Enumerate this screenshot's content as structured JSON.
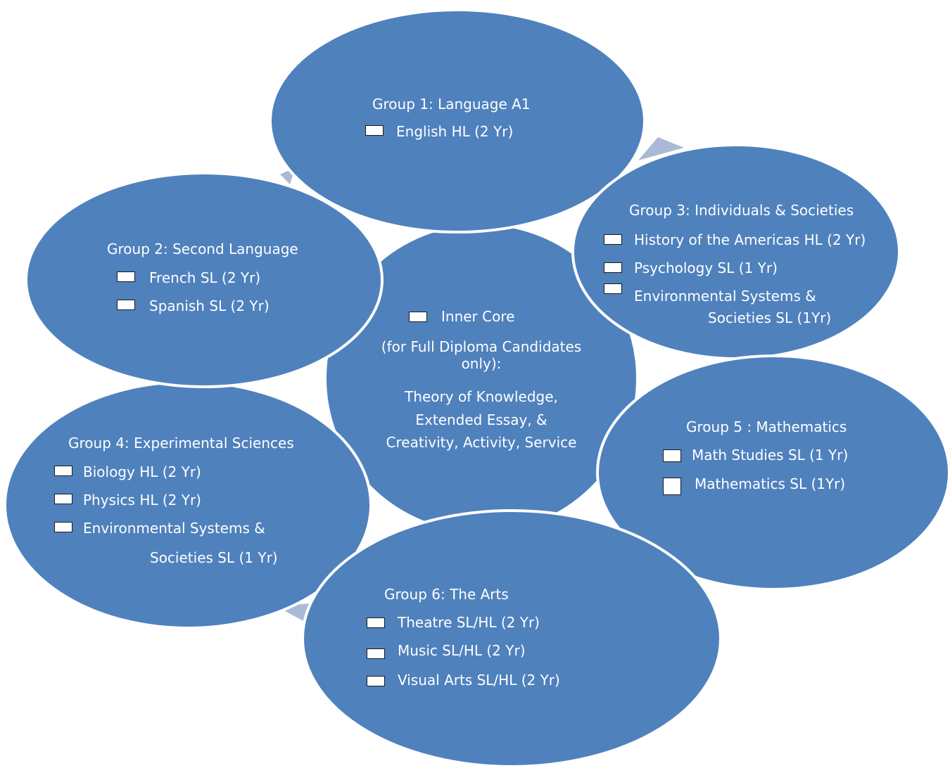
{
  "colors": {
    "circle_fill": "#4F81BD",
    "circle_stroke": "#ffffff",
    "arrow": "#AAB9D6",
    "text": "#ffffff"
  },
  "center": {
    "checkbox_label": "Inner Core",
    "line1": "(for Full Diploma Candidates",
    "line2": "only):",
    "line3": "Theory of Knowledge,",
    "line4": "Extended Essay, &",
    "line5": "Creativity, Activity, Service"
  },
  "group1": {
    "title": "Group 1: Language A1",
    "items": [
      "English HL (2 Yr)"
    ]
  },
  "group2": {
    "title": "Group 2: Second Language",
    "items": [
      "French SL (2 Yr)",
      "Spanish SL (2 Yr)"
    ]
  },
  "group3": {
    "title": "Group 3: Individuals &  Societies",
    "items": [
      "History of the Americas HL (2 Yr)",
      "Psychology SL (1 Yr)",
      "Environmental Systems &",
      "Societies SL (1Yr)"
    ]
  },
  "group4": {
    "title": "Group 4: Experimental Sciences",
    "items": [
      "Biology HL (2 Yr)",
      "Physics HL (2 Yr)",
      "Environmental Systems &",
      "Societies SL (1 Yr)"
    ]
  },
  "group5": {
    "title": "Group 5 : Mathematics",
    "items": [
      "Math Studies SL (1 Yr)",
      "Mathematics SL (1Yr)"
    ]
  },
  "group6": {
    "title": "Group 6:  The Arts",
    "items": [
      "Theatre SL/HL (2 Yr)",
      "Music SL/HL (2 Yr)",
      "Visual Arts SL/HL (2 Yr)"
    ]
  }
}
